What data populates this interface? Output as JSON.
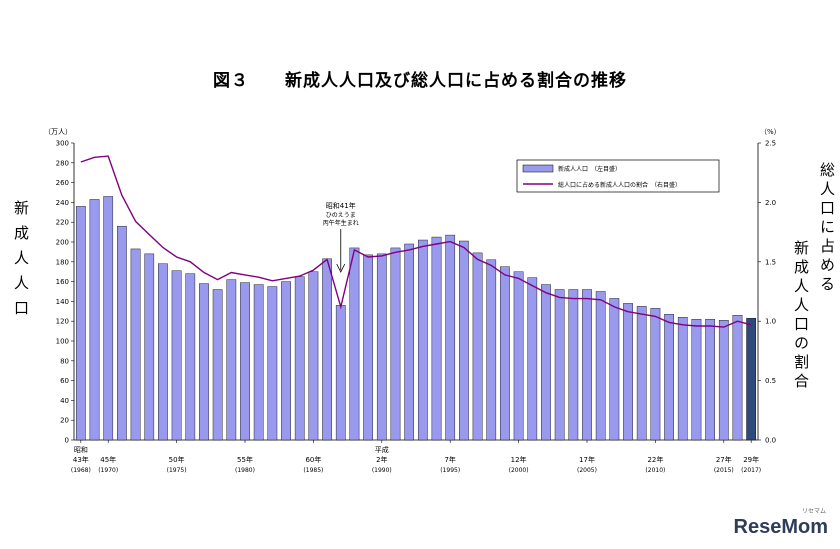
{
  "chart_data": {
    "type": "bar",
    "title": "図３　　新成人人口及び総人口に占める割合の推移",
    "left_axis": {
      "title": "新成人人口",
      "unit": "（万人）",
      "ticks": [
        "0",
        "20",
        "40",
        "60",
        "80",
        "100",
        "120",
        "140",
        "160",
        "180",
        "200",
        "220",
        "240",
        "260",
        "280",
        "300"
      ],
      "range": [
        0,
        300
      ]
    },
    "right_axis": {
      "title_a": "総人口に占める",
      "title_b": "新成人人口の割合",
      "unit": "（%）",
      "ticks": [
        "0.0",
        "0.5",
        "1.0",
        "1.5",
        "2.0",
        "2.5"
      ],
      "range": [
        0,
        2.5
      ]
    },
    "x": [
      1968,
      1969,
      1970,
      1971,
      1972,
      1973,
      1974,
      1975,
      1976,
      1977,
      1978,
      1979,
      1980,
      1981,
      1982,
      1983,
      1984,
      1985,
      1986,
      1987,
      1988,
      1989,
      1990,
      1991,
      1992,
      1993,
      1994,
      1995,
      1996,
      1997,
      1998,
      1999,
      2000,
      2001,
      2002,
      2003,
      2004,
      2005,
      2006,
      2007,
      2008,
      2009,
      2010,
      2011,
      2012,
      2013,
      2014,
      2015,
      2016,
      2017
    ],
    "x_labels": [
      {
        "year": 1968,
        "era": "昭和",
        "line1": "43年",
        "line2": "(1968)"
      },
      {
        "year": 1970,
        "era": "",
        "line1": "45年",
        "line2": "(1970)"
      },
      {
        "year": 1975,
        "era": "",
        "line1": "50年",
        "line2": "(1975)"
      },
      {
        "year": 1980,
        "era": "",
        "line1": "55年",
        "line2": "(1980)"
      },
      {
        "year": 1985,
        "era": "",
        "line1": "60年",
        "line2": "(1985)"
      },
      {
        "year": 1990,
        "era": "平成",
        "line1": "2年",
        "line2": "(1990)"
      },
      {
        "year": 1995,
        "era": "",
        "line1": "7年",
        "line2": "(1995)"
      },
      {
        "year": 2000,
        "era": "",
        "line1": "12年",
        "line2": "(2000)"
      },
      {
        "year": 2005,
        "era": "",
        "line1": "17年",
        "line2": "(2005)"
      },
      {
        "year": 2010,
        "era": "",
        "line1": "22年",
        "line2": "(2010)"
      },
      {
        "year": 2015,
        "era": "",
        "line1": "27年",
        "line2": "(2015)"
      },
      {
        "year": 2017,
        "era": "",
        "line1": "29年",
        "line2": "(2017)"
      }
    ],
    "series": [
      {
        "name": "新成人人口　（左目盛）",
        "kind": "bar",
        "color": "#9999ee",
        "highlight_color": "#2e4a7a",
        "highlight_year": 2017,
        "values": [
          236,
          243,
          246,
          216,
          193,
          188,
          178,
          171,
          168,
          158,
          152,
          162,
          159,
          157,
          155,
          160,
          165,
          170,
          183,
          136,
          194,
          187,
          188,
          194,
          198,
          202,
          205,
          207,
          201,
          189,
          182,
          175,
          170,
          164,
          157,
          152,
          152,
          152,
          150,
          143,
          138,
          135,
          133,
          127,
          124,
          122,
          122,
          121,
          126,
          123
        ]
      },
      {
        "name": "総人口に占める新成人人口の割合　（右目盛）",
        "kind": "line",
        "color": "#800080",
        "values": [
          2.34,
          2.38,
          2.39,
          2.06,
          1.84,
          1.73,
          1.62,
          1.54,
          1.5,
          1.41,
          1.35,
          1.41,
          1.39,
          1.37,
          1.34,
          1.36,
          1.38,
          1.43,
          1.52,
          1.12,
          1.6,
          1.54,
          1.55,
          1.58,
          1.6,
          1.63,
          1.65,
          1.67,
          1.62,
          1.52,
          1.47,
          1.39,
          1.36,
          1.3,
          1.24,
          1.2,
          1.19,
          1.19,
          1.18,
          1.12,
          1.08,
          1.06,
          1.04,
          0.99,
          0.97,
          0.96,
          0.96,
          0.95,
          1.0,
          0.97
        ]
      }
    ],
    "annotation": {
      "year": 1987,
      "line1": "昭和41年",
      "line2": "ひのえうま",
      "line3": "丙午年生まれ"
    }
  },
  "watermark": {
    "text": "ReseMom",
    "ruby": "リセマム"
  }
}
